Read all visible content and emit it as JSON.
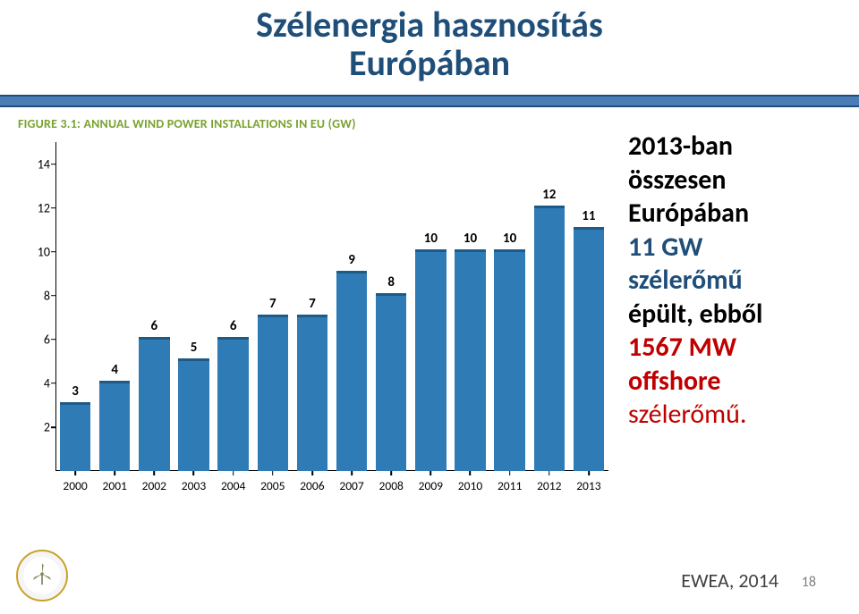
{
  "title_line1": "Szélenergia hasznosítás",
  "title_line2": "Európában",
  "title_color": "#1f4e79",
  "title_fontsize": 40,
  "divider_color": "#4a7db8",
  "divider_border": "#1f4e79",
  "figure_caption": "FIGURE 3.1: ANNUAL WIND POWER INSTALLATIONS IN EU (GW)",
  "figure_caption_color": "#7aa22f",
  "figure_caption_fontsize": 14,
  "chart": {
    "type": "bar",
    "categories": [
      "2000",
      "2001",
      "2002",
      "2003",
      "2004",
      "2005",
      "2006",
      "2007",
      "2008",
      "2009",
      "2010",
      "2011",
      "2012",
      "2013"
    ],
    "values": [
      3,
      4,
      6,
      5,
      6,
      7,
      7,
      9,
      8,
      10,
      10,
      10,
      12,
      11
    ],
    "value_labels": [
      "3",
      "4",
      "6",
      "5",
      "6",
      "7",
      "7",
      "9",
      "8",
      "10",
      "10",
      "10",
      "12",
      "11"
    ],
    "bar_color": "#2f7bb5",
    "bar_top_line_color": "#1e5a86",
    "bar_width_ratio": 0.78,
    "ylim": [
      0,
      15
    ],
    "yticks": [
      2,
      4,
      6,
      8,
      10,
      12,
      14
    ],
    "ytick_fontsize": 14,
    "xtick_fontsize": 13.5,
    "value_label_fontsize": 15,
    "axis_color": "#000000",
    "background_color": "#ffffff",
    "grid": false
  },
  "side": {
    "l1a": "2013-ban",
    "l1b": "összesen",
    "l2a": "Európában",
    "l3": "11 GW",
    "l4a": "szélerőmű",
    "l4b": "épült, ebből",
    "l5": "1567 MW",
    "l6": "offshore",
    "l7": "szélerőmű.",
    "black_color": "#000000",
    "blue_color": "#1f4e79",
    "red_color": "#c00000",
    "fontsize": 30
  },
  "source_text": "EWEA, 2014",
  "source_color": "#404040",
  "source_fontsize": 22,
  "page_number": "18",
  "page_number_color": "#7f7f7f",
  "page_number_fontsize": 16,
  "logo_border_color": "#c9a227",
  "logo_turbine_color": "#7a8a5a"
}
